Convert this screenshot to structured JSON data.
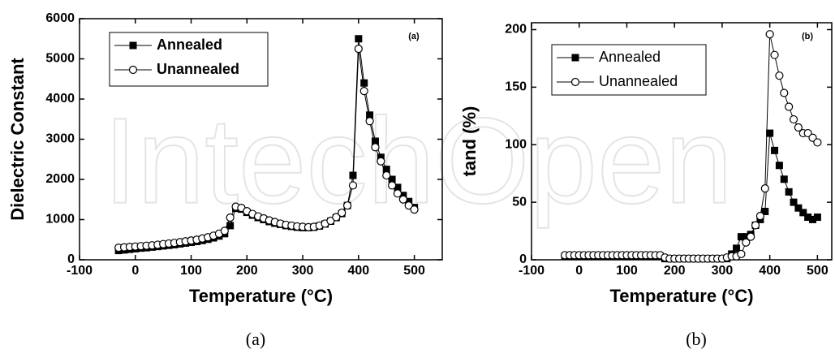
{
  "watermark": "IntechOpen",
  "chart_data": [
    {
      "type": "line",
      "caption": "(a)",
      "note": "(a)",
      "xlabel": "Temperature (°C)",
      "ylabel": "Dielectric Constant",
      "xlim": [
        -100,
        550
      ],
      "xticks": [
        -100,
        0,
        100,
        200,
        300,
        400,
        500
      ],
      "ylim": [
        0,
        6000
      ],
      "yticks": [
        0,
        1000,
        2000,
        3000,
        4000,
        5000,
        6000
      ],
      "x": [
        -30,
        -20,
        -10,
        0,
        10,
        20,
        30,
        40,
        50,
        60,
        70,
        80,
        90,
        100,
        110,
        120,
        130,
        140,
        150,
        160,
        170,
        180,
        190,
        200,
        210,
        220,
        230,
        240,
        250,
        260,
        270,
        280,
        290,
        300,
        310,
        320,
        330,
        340,
        350,
        360,
        370,
        380,
        390,
        400,
        410,
        420,
        430,
        440,
        450,
        460,
        470,
        480,
        490,
        500
      ],
      "series": [
        {
          "name": "Annealed",
          "color": "#000000",
          "marker": "square",
          "values": [
            230,
            245,
            260,
            275,
            290,
            300,
            315,
            330,
            345,
            360,
            375,
            395,
            415,
            435,
            455,
            480,
            510,
            545,
            590,
            650,
            850,
            1280,
            1260,
            1180,
            1110,
            1050,
            1000,
            950,
            910,
            880,
            850,
            830,
            810,
            800,
            800,
            810,
            840,
            890,
            960,
            1050,
            1150,
            1350,
            2100,
            5500,
            4400,
            3600,
            2950,
            2550,
            2250,
            2000,
            1800,
            1600,
            1450,
            1300
          ]
        },
        {
          "name": "Unannealed",
          "color": "#000000",
          "marker": "circle",
          "values": [
            300,
            310,
            320,
            330,
            340,
            350,
            360,
            375,
            390,
            405,
            420,
            440,
            460,
            480,
            500,
            530,
            560,
            600,
            650,
            720,
            1050,
            1320,
            1290,
            1210,
            1140,
            1080,
            1030,
            980,
            940,
            900,
            870,
            850,
            830,
            820,
            810,
            820,
            850,
            900,
            970,
            1060,
            1170,
            1350,
            1850,
            5250,
            4200,
            3450,
            2800,
            2450,
            2100,
            1850,
            1650,
            1500,
            1350,
            1250
          ]
        }
      ]
    },
    {
      "type": "line",
      "caption": "(b)",
      "note": "(b)",
      "xlabel": "Temperature (°C)",
      "ylabel": "tand (%)",
      "xlim": [
        -100,
        530
      ],
      "xticks": [
        -100,
        0,
        100,
        200,
        300,
        400,
        500
      ],
      "ylim": [
        0,
        206
      ],
      "yticks": [
        0,
        50,
        100,
        150,
        200
      ],
      "x": [
        -30,
        -20,
        -10,
        0,
        10,
        20,
        30,
        40,
        50,
        60,
        70,
        80,
        90,
        100,
        110,
        120,
        130,
        140,
        150,
        160,
        170,
        180,
        190,
        200,
        210,
        220,
        230,
        240,
        250,
        260,
        270,
        280,
        290,
        300,
        310,
        320,
        330,
        340,
        350,
        360,
        370,
        380,
        390,
        400,
        410,
        420,
        430,
        440,
        450,
        460,
        470,
        480,
        490,
        500
      ],
      "series": [
        {
          "name": "Annealed",
          "color": "#000000",
          "marker": "square",
          "values": [
            3,
            3,
            3,
            3,
            3,
            3,
            3,
            3,
            3,
            3,
            3,
            3,
            3,
            3,
            3,
            3,
            3,
            3,
            3,
            3,
            3,
            1,
            1,
            1,
            1,
            1,
            1,
            1,
            1,
            1,
            1,
            1,
            1,
            1,
            1,
            5,
            10,
            20,
            20,
            22,
            30,
            35,
            42,
            110,
            95,
            82,
            70,
            59,
            50,
            45,
            41,
            37,
            35,
            37
          ]
        },
        {
          "name": "Unannealed",
          "color": "#000000",
          "marker": "circle",
          "values": [
            4,
            4,
            4,
            4,
            4,
            4,
            4,
            4,
            4,
            4,
            4,
            4,
            4,
            4,
            4,
            4,
            4,
            4,
            4,
            4,
            4,
            2,
            1,
            1,
            1,
            1,
            1,
            1,
            1,
            1,
            1,
            1,
            1,
            1,
            2,
            3,
            3,
            5,
            15,
            20,
            30,
            38,
            62,
            196,
            178,
            160,
            145,
            133,
            122,
            115,
            110,
            110,
            106,
            102
          ]
        }
      ]
    }
  ]
}
